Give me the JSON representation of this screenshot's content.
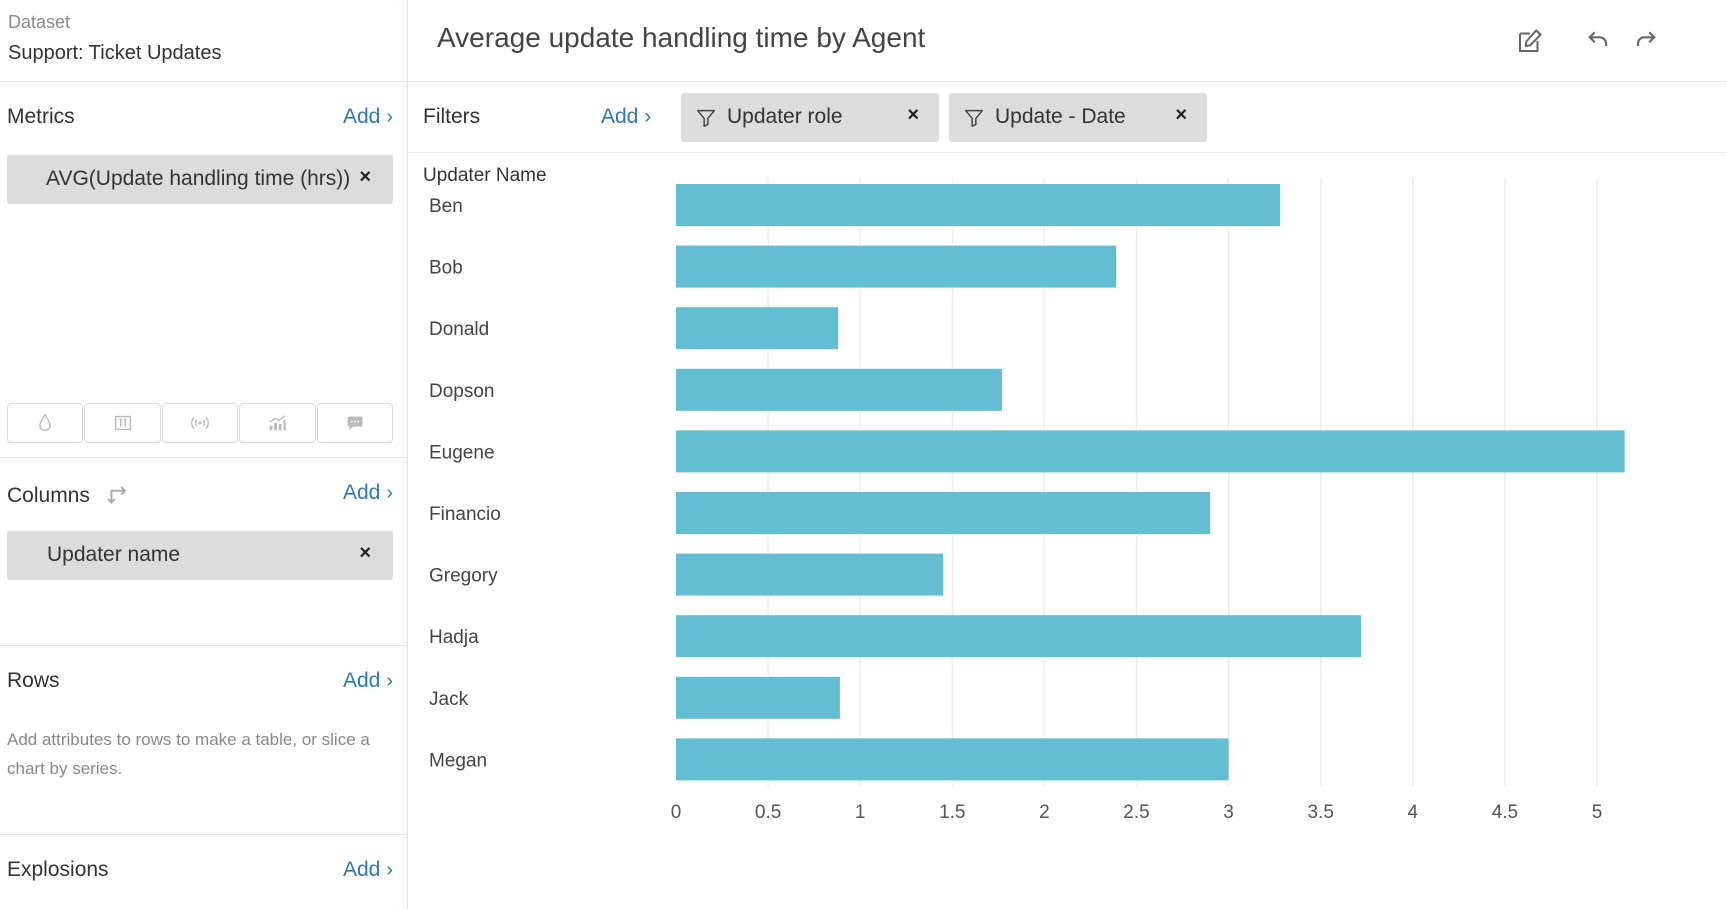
{
  "sidebar": {
    "dataset_label": "Dataset",
    "dataset_name": "Support: Ticket Updates",
    "metrics": {
      "title": "Metrics",
      "add": "Add",
      "pill": "AVG(Update handling time (hrs))",
      "remove": "×"
    },
    "viz_buttons": [
      "droplet-icon",
      "columns-icon",
      "broadcast-icon",
      "trend-chart-icon",
      "comment-icon"
    ],
    "columns": {
      "title": "Columns",
      "add": "Add",
      "pill": "Updater name",
      "remove": "×"
    },
    "rows": {
      "title": "Rows",
      "add": "Add",
      "help": "Add attributes to rows to make a table, or slice a chart by series."
    },
    "explosions": {
      "title": "Explosions",
      "add": "Add"
    }
  },
  "header": {
    "title": "Average update handling time by Agent",
    "icons": [
      "edit-icon",
      "undo-icon",
      "redo-icon"
    ]
  },
  "filters": {
    "label": "Filters",
    "add": "Add",
    "chips": [
      {
        "label": "Updater role",
        "remove": "×"
      },
      {
        "label": "Update - Date",
        "remove": "×"
      }
    ]
  },
  "chart_data": {
    "type": "bar",
    "orientation": "horizontal",
    "ylabel": "Updater Name",
    "categories": [
      "Ben",
      "Bob",
      "Donald",
      "Dopson",
      "Eugene",
      "Financio",
      "Gregory",
      "Hadja",
      "Jack",
      "Megan"
    ],
    "values": [
      3.28,
      2.39,
      0.88,
      1.77,
      5.15,
      2.9,
      1.45,
      3.72,
      0.89,
      3.0
    ],
    "xlim": [
      0,
      5.15
    ],
    "xticks": [
      "0",
      "0.5",
      "1",
      "1.5",
      "2",
      "2.5",
      "3",
      "3.5",
      "4",
      "4.5",
      "5"
    ],
    "grid": true,
    "bar_color": "#63bed4"
  }
}
